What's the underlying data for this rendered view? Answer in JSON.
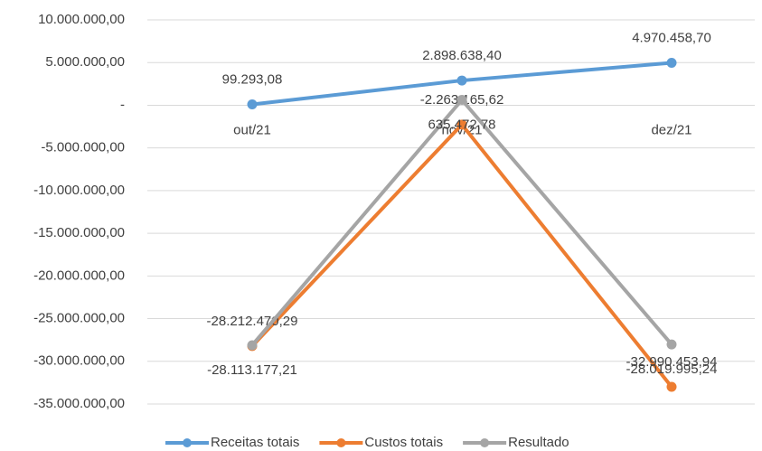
{
  "chart_data": {
    "type": "line",
    "categories": [
      "out/21",
      "nov/21",
      "dez/21"
    ],
    "series": [
      {
        "name": "Receitas totais",
        "color": "#5b9bd5",
        "values": [
          99293.08,
          2898638.4,
          4970458.7
        ],
        "value_labels": [
          "99.293,08",
          "2.898.638,40",
          "4.970.458,70"
        ]
      },
      {
        "name": "Custos totais",
        "color": "#ed7d31",
        "values": [
          -28212470.29,
          -2263165.62,
          -32990453.94
        ],
        "value_labels": [
          "-28.212.470,29",
          "-2.263.165,62",
          "-32.990.453,94"
        ]
      },
      {
        "name": "Resultado",
        "color": "#a5a5a5",
        "values": [
          -28113177.21,
          635472.78,
          -28019995.24
        ],
        "value_labels": [
          "-28.113.177,21",
          "635.472,78",
          "-28.019.995,24"
        ]
      }
    ],
    "ylim": [
      -35000000,
      10000000
    ],
    "yticks": [
      {
        "value": -35000000,
        "label": "-35.000.000,00"
      },
      {
        "value": -30000000,
        "label": "-30.000.000,00"
      },
      {
        "value": -25000000,
        "label": "-25.000.000,00"
      },
      {
        "value": -20000000,
        "label": "-20.000.000,00"
      },
      {
        "value": -15000000,
        "label": "-15.000.000,00"
      },
      {
        "value": -10000000,
        "label": "-10.000.000,00"
      },
      {
        "value": -5000000,
        "label": "-5.000.000,00"
      },
      {
        "value": 0,
        "label": "-"
      },
      {
        "value": 5000000,
        "label": "5.000.000,00"
      },
      {
        "value": 10000000,
        "label": "10.000.000,00"
      }
    ],
    "grid": true,
    "legend": "bottom"
  }
}
